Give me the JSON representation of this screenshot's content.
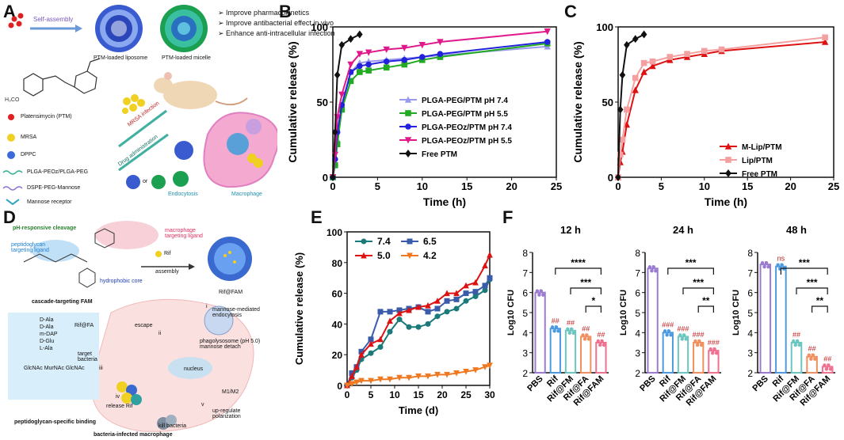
{
  "panels": {
    "A": {
      "label": "A",
      "self_assembly": "Self-assembly",
      "liposome_label": "PTM-loaded liposome",
      "micelle_label": "PTM-loaded micelle",
      "bullets": [
        "Improve pharmacokinetics",
        "Improve antibacterial effect in vivo",
        "Enhance anti-intracellular infection"
      ],
      "legend": [
        "Platensimycin (PTM)",
        "MRSA",
        "DPPC",
        "PLGA-PEOz/PLGA-PEG",
        "DSPE-PEG-Mannose",
        "Mannose receptor"
      ],
      "mrsa_infection": "MRSA infection",
      "drug_administration": "Drug administration",
      "or": "or",
      "endocytosis": "Endocytosis",
      "macrophage": "Macrophage"
    },
    "D": {
      "label": "D",
      "ph_cleavage": "pH-responsive cleavage",
      "macrophage_ligand": "macrophage targeting ligand",
      "peptidoglycan_ligand": "peptidoglycan targeting ligand",
      "hydrophobic_core": "hydrophobic core",
      "cascade": "cascade-targeting FAM",
      "rif": "Rif",
      "assembly": "assembly",
      "rif_fam": "Rif@FAM",
      "rif_fa": "Rif@FA",
      "escape": "escape",
      "step_i": "i",
      "step_ii": "ii",
      "step_iii": "iii",
      "step_iv": "iv",
      "step_v": "v",
      "mannose_endocytosis": "mannose-mediated endocytosis",
      "target_bacteria": "target bacteria",
      "phagolysosome": "phagolysosome (pH 5.0) mannose detach",
      "nucleus": "nucleus",
      "release_rif": "release Rif",
      "kill_bacteria": "kill bacteria",
      "upregulate": "up-regulate polarization",
      "m1m2": "M1/M2",
      "pg_binding": "peptidoglycan-specific binding",
      "infected_macrophage": "bacteria-infected macrophage",
      "amino_acids": [
        "D-Ala",
        "D-Ala",
        "m-DAP",
        "D-Glu",
        "L-Ala"
      ],
      "sugars": [
        "GlcNAc",
        "MurNAc",
        "GlcNAc"
      ]
    }
  },
  "chart_data": [
    {
      "panel": "B",
      "type": "line",
      "xlabel": "Time (h)",
      "ylabel": "Cumulative release (%)",
      "xlim": [
        0,
        25
      ],
      "ylim": [
        0,
        100
      ],
      "xticks": [
        0,
        5,
        10,
        15,
        20,
        25
      ],
      "yticks": [
        0,
        50,
        100
      ],
      "legend_position": "bottom-right",
      "series": [
        {
          "name": "PLGA-PEG/PTM pH 7.4",
          "color": "#9999ee",
          "marker": "triangle",
          "x": [
            0,
            0.25,
            0.5,
            1,
            2,
            3,
            4,
            6,
            8,
            10,
            12,
            24
          ],
          "y": [
            0,
            10,
            25,
            45,
            70,
            76,
            77,
            78,
            79,
            80,
            81,
            87
          ]
        },
        {
          "name": "PLGA-PEG/PTM pH 5.5",
          "color": "#22aa22",
          "marker": "square",
          "x": [
            0,
            0.25,
            0.5,
            1,
            2,
            3,
            4,
            6,
            8,
            10,
            12,
            24
          ],
          "y": [
            0,
            8,
            22,
            45,
            64,
            70,
            71,
            73,
            75,
            78,
            80,
            89
          ]
        },
        {
          "name": "PLGA-PEOz/PTM pH 7.4",
          "color": "#2222dd",
          "marker": "circle",
          "x": [
            0,
            0.25,
            0.5,
            1,
            2,
            3,
            4,
            6,
            8,
            10,
            12,
            24
          ],
          "y": [
            0,
            12,
            30,
            48,
            70,
            74,
            75,
            77,
            78,
            80,
            82,
            90
          ]
        },
        {
          "name": "PLGA-PEOz/PTM pH 5.5",
          "color": "#e0188a",
          "marker": "triangle-down",
          "x": [
            0,
            0.25,
            0.5,
            1,
            2,
            3,
            4,
            6,
            8,
            10,
            12,
            24
          ],
          "y": [
            0,
            15,
            40,
            55,
            75,
            82,
            83,
            85,
            86,
            88,
            90,
            97
          ]
        },
        {
          "name": "Free PTM",
          "color": "#111111",
          "marker": "diamond",
          "x": [
            0,
            0.25,
            0.5,
            1,
            2,
            3
          ],
          "y": [
            0,
            30,
            68,
            88,
            92,
            95
          ]
        }
      ]
    },
    {
      "panel": "C",
      "type": "line",
      "xlabel": "Time (h)",
      "ylabel": "Cumulative release (%)",
      "xlim": [
        0,
        25
      ],
      "ylim": [
        0,
        100
      ],
      "xticks": [
        0,
        5,
        10,
        15,
        20,
        25
      ],
      "yticks": [
        0,
        50,
        100
      ],
      "legend_position": "bottom-right",
      "series": [
        {
          "name": "M-Lip/PTM",
          "color": "#dd1111",
          "marker": "triangle",
          "x": [
            0,
            0.25,
            0.5,
            1,
            2,
            3,
            4,
            6,
            8,
            10,
            12,
            24
          ],
          "y": [
            0,
            10,
            17,
            35,
            58,
            70,
            74,
            78,
            80,
            82,
            84,
            90
          ]
        },
        {
          "name": "Lip/PTM",
          "color": "#f4a0a0",
          "marker": "square",
          "x": [
            0,
            0.25,
            0.5,
            1,
            2,
            3,
            4,
            6,
            8,
            10,
            12,
            24
          ],
          "y": [
            0,
            15,
            25,
            45,
            66,
            76,
            77,
            80,
            82,
            84,
            85,
            93
          ]
        },
        {
          "name": "Free PTM",
          "color": "#111111",
          "marker": "diamond",
          "x": [
            0,
            0.25,
            0.5,
            1,
            2,
            3
          ],
          "y": [
            0,
            45,
            68,
            88,
            92,
            95
          ]
        }
      ]
    },
    {
      "panel": "E",
      "type": "line",
      "xlabel": "Time (d)",
      "ylabel": "Cumulative release (%)",
      "xlim": [
        0,
        30
      ],
      "ylim": [
        0,
        100
      ],
      "xticks": [
        0,
        5,
        10,
        15,
        20,
        25,
        30
      ],
      "yticks": [
        0,
        20,
        40,
        60,
        80,
        100
      ],
      "legend_position": "top-left",
      "series": [
        {
          "name": "7.4",
          "color": "#1a7a7a",
          "marker": "circle",
          "x": [
            0,
            1,
            2,
            3,
            5,
            7,
            9,
            11,
            13,
            15,
            17,
            19,
            21,
            23,
            25,
            27,
            29,
            30
          ],
          "y": [
            0,
            5,
            10,
            17,
            21,
            25,
            35,
            43,
            38,
            38,
            40,
            45,
            48,
            50,
            55,
            58,
            62,
            69
          ]
        },
        {
          "name": "6.5",
          "color": "#3a5aaa",
          "marker": "square",
          "x": [
            0,
            1,
            2,
            3,
            5,
            7,
            9,
            11,
            13,
            15,
            17,
            19,
            21,
            23,
            25,
            27,
            29,
            30
          ],
          "y": [
            0,
            8,
            12,
            22,
            30,
            48,
            48,
            49,
            50,
            51,
            48,
            50,
            55,
            56,
            60,
            61,
            65,
            70
          ]
        },
        {
          "name": "5.0",
          "color": "#dd1111",
          "marker": "triangle",
          "x": [
            0,
            1,
            2,
            3,
            5,
            7,
            9,
            11,
            13,
            15,
            17,
            19,
            21,
            23,
            25,
            27,
            29,
            30
          ],
          "y": [
            0,
            6,
            12,
            20,
            27,
            30,
            42,
            47,
            49,
            51,
            52,
            55,
            60,
            60,
            65,
            67,
            78,
            85
          ]
        },
        {
          "name": "4.2",
          "color": "#f07820",
          "marker": "triangle-down",
          "x": [
            0,
            1,
            2,
            3,
            5,
            7,
            9,
            11,
            13,
            15,
            17,
            19,
            21,
            23,
            25,
            27,
            29,
            30
          ],
          "y": [
            0,
            1,
            2,
            3,
            3,
            4,
            4,
            5,
            5,
            6,
            6,
            7,
            7,
            8,
            9,
            10,
            12,
            13
          ]
        }
      ]
    },
    {
      "panel": "F",
      "type": "bar",
      "ylabel": "Log10 CFU",
      "ylim": [
        2,
        8
      ],
      "yticks": [
        2,
        3,
        4,
        5,
        6,
        7,
        8
      ],
      "categories": [
        "PBS",
        "Rif",
        "Rif@FM",
        "Rif@FA",
        "Rif@FAM"
      ],
      "colors": [
        "#9b7bd0",
        "#4d9ae0",
        "#6cc6c0",
        "#f09060",
        "#f07090"
      ],
      "subplots": [
        {
          "title": "12 h",
          "values": [
            6.0,
            4.2,
            4.1,
            3.8,
            3.5
          ],
          "marks": [
            "",
            "##",
            "##",
            "##",
            "##"
          ],
          "brackets": [
            "****",
            "***",
            "*"
          ]
        },
        {
          "title": "24 h",
          "values": [
            7.2,
            4.0,
            3.8,
            3.5,
            3.1
          ],
          "marks": [
            "",
            "###",
            "###",
            "###",
            "###"
          ],
          "brackets": [
            "***",
            "***",
            "**"
          ]
        },
        {
          "title": "48 h",
          "values": [
            7.4,
            7.3,
            3.5,
            2.8,
            2.3
          ],
          "marks": [
            "",
            "ns",
            "##",
            "##",
            "##"
          ],
          "brackets": [
            "***",
            "***",
            "**"
          ]
        }
      ]
    }
  ]
}
